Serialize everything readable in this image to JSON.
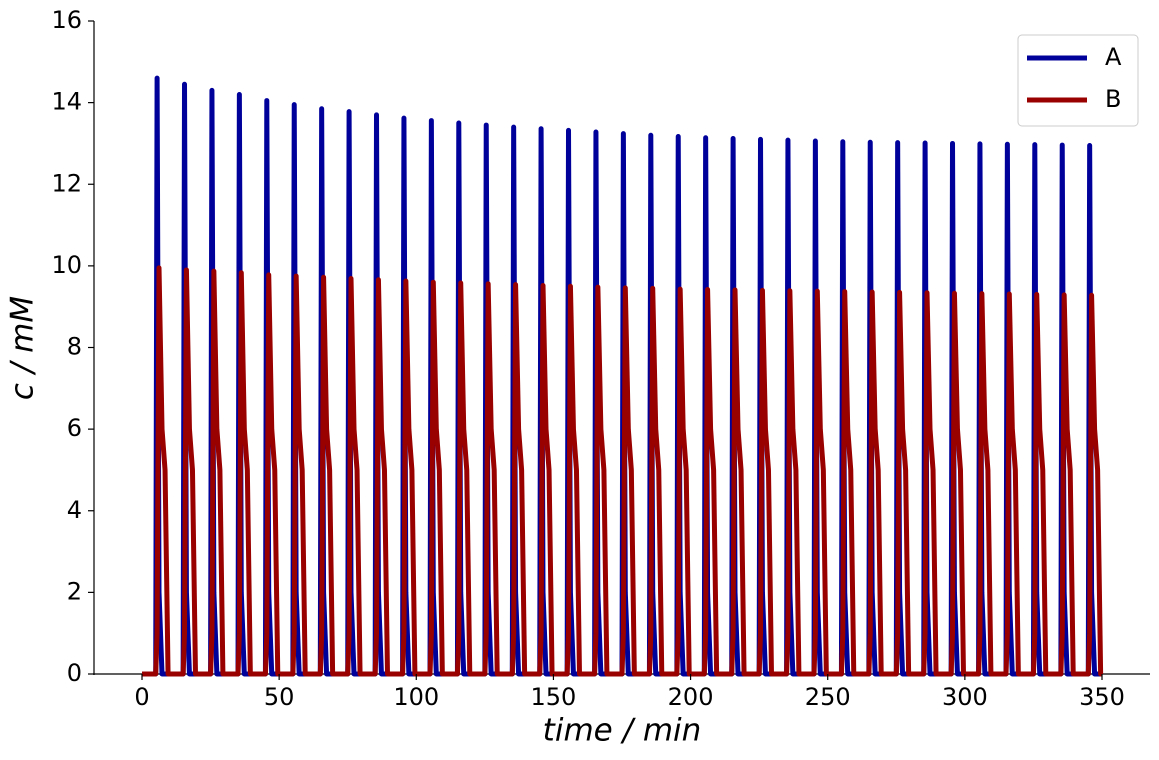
{
  "chart_data": {
    "type": "line",
    "xlabel": "time / min",
    "ylabel": "c / mM",
    "xlim": [
      -17.5,
      367.5
    ],
    "ylim": [
      0,
      16
    ],
    "xticks": [
      0,
      50,
      100,
      150,
      200,
      250,
      300,
      350
    ],
    "yticks": [
      0,
      2,
      4,
      6,
      8,
      10,
      12,
      14,
      16
    ],
    "legend": "upper right",
    "x": [
      0,
      5,
      5.5,
      6.2,
      7.3,
      8.4,
      9.5,
      15,
      15.5,
      16.2,
      17.3,
      18.4,
      19.5,
      25,
      25.5,
      26.2,
      27.3,
      28.4,
      29.5,
      35,
      35.5,
      36.2,
      37.3,
      38.4,
      39.5,
      45,
      45.5,
      46.2,
      47.3,
      48.4,
      49.5,
      55,
      55.5,
      56.2,
      57.3,
      58.4,
      59.5,
      65,
      65.5,
      66.2,
      67.3,
      68.4,
      69.5,
      75,
      75.5,
      76.2,
      77.3,
      78.4,
      79.5,
      85,
      85.5,
      86.2,
      87.3,
      88.4,
      89.5,
      95,
      95.5,
      96.2,
      97.3,
      98.4,
      99.5,
      105,
      105.5,
      106.2,
      107.3,
      108.4,
      109.5,
      115,
      115.5,
      116.2,
      117.3,
      118.4,
      119.5,
      125,
      125.5,
      126.2,
      127.3,
      128.4,
      129.5,
      135,
      135.5,
      136.2,
      137.3,
      138.4,
      139.5,
      145,
      145.5,
      146.2,
      147.3,
      148.4,
      149.5,
      155,
      155.5,
      156.2,
      157.3,
      158.4,
      159.5,
      165,
      165.5,
      166.2,
      167.3,
      168.4,
      169.5,
      175,
      175.5,
      176.2,
      177.3,
      178.4,
      179.5,
      185,
      185.5,
      186.2,
      187.3,
      188.4,
      189.5,
      195,
      195.5,
      196.2,
      197.3,
      198.4,
      199.5,
      205,
      205.5,
      206.2,
      207.3,
      208.4,
      209.5,
      215,
      215.5,
      216.2,
      217.3,
      218.4,
      219.5,
      225,
      225.5,
      226.2,
      227.3,
      228.4,
      229.5,
      235,
      235.5,
      236.2,
      237.3,
      238.4,
      239.5,
      245,
      245.5,
      246.2,
      247.3,
      248.4,
      249.5,
      255,
      255.5,
      256.2,
      257.3,
      258.4,
      259.5,
      265,
      265.5,
      266.2,
      267.3,
      268.4,
      269.5,
      275,
      275.5,
      276.2,
      277.3,
      278.4,
      279.5,
      285,
      285.5,
      286.2,
      287.3,
      288.4,
      289.5,
      295,
      295.5,
      296.2,
      297.3,
      298.4,
      299.5,
      305,
      305.5,
      306.2,
      307.3,
      308.4,
      309.5,
      315,
      315.5,
      316.2,
      317.3,
      318.4,
      319.5,
      325,
      325.5,
      326.2,
      327.3,
      328.4,
      329.5,
      335,
      335.5,
      336.2,
      337.3,
      338.4,
      339.5,
      345,
      345.5,
      346.2,
      347.3,
      348.4,
      349.5,
      350
    ],
    "series": [
      {
        "name": "A",
        "color": "#00009b",
        "values": [
          0,
          0,
          14.6,
          2,
          0,
          0,
          0,
          0,
          14.45,
          2,
          0,
          0,
          0,
          0,
          14.3,
          2,
          0,
          0,
          0,
          0,
          14.2,
          2,
          0,
          0,
          0,
          0,
          14.05,
          2,
          0,
          0,
          0,
          0,
          13.95,
          2,
          0,
          0,
          0,
          0,
          13.85,
          2,
          0,
          0,
          0,
          0,
          13.78,
          2,
          0,
          0,
          0,
          0,
          13.7,
          2,
          0,
          0,
          0,
          0,
          13.62,
          2,
          0,
          0,
          0,
          0,
          13.56,
          2,
          0,
          0,
          0,
          0,
          13.5,
          2,
          0,
          0,
          0,
          0,
          13.45,
          2,
          0,
          0,
          0,
          0,
          13.4,
          2,
          0,
          0,
          0,
          0,
          13.36,
          2,
          0,
          0,
          0,
          0,
          13.32,
          2,
          0,
          0,
          0,
          0,
          13.28,
          2,
          0,
          0,
          0,
          0,
          13.24,
          2,
          0,
          0,
          0,
          0,
          13.2,
          2,
          0,
          0,
          0,
          0,
          13.17,
          2,
          0,
          0,
          0,
          0,
          13.14,
          2,
          0,
          0,
          0,
          0,
          13.12,
          2,
          0,
          0,
          0,
          0,
          13.1,
          2,
          0,
          0,
          0,
          0,
          13.08,
          2,
          0,
          0,
          0,
          0,
          13.06,
          2,
          0,
          0,
          0,
          0,
          13.04,
          2,
          0,
          0,
          0,
          0,
          13.03,
          2,
          0,
          0,
          0,
          0,
          13.02,
          2,
          0,
          0,
          0,
          0,
          13.01,
          2,
          0,
          0,
          0,
          0,
          13.0,
          2,
          0,
          0,
          0,
          0,
          12.99,
          2,
          0,
          0,
          0,
          0,
          12.98,
          2,
          0,
          0,
          0,
          0,
          12.97,
          2,
          0,
          0,
          0,
          0,
          12.96,
          2,
          0,
          0,
          0,
          0,
          12.95,
          2,
          0,
          0,
          0,
          0
        ]
      },
      {
        "name": "B",
        "color": "#990000",
        "values": [
          0,
          0,
          1,
          9.95,
          6,
          5,
          0,
          0,
          1,
          9.9,
          6,
          5,
          0,
          0,
          1,
          9.87,
          6,
          5,
          0,
          0,
          1,
          9.83,
          6,
          5,
          0,
          0,
          1,
          9.78,
          6,
          5,
          0,
          0,
          1,
          9.75,
          6,
          5,
          0,
          0,
          1,
          9.72,
          6,
          5,
          0,
          0,
          1,
          9.69,
          6,
          5,
          0,
          0,
          1,
          9.66,
          6,
          5,
          0,
          0,
          1,
          9.63,
          6,
          5,
          0,
          0,
          1,
          9.6,
          6,
          5,
          0,
          0,
          1,
          9.58,
          6,
          5,
          0,
          0,
          1,
          9.56,
          6,
          5,
          0,
          0,
          1,
          9.54,
          6,
          5,
          0,
          0,
          1,
          9.52,
          6,
          5,
          0,
          0,
          1,
          9.5,
          6,
          5,
          0,
          0,
          1,
          9.48,
          6,
          5,
          0,
          0,
          1,
          9.46,
          6,
          5,
          0,
          0,
          1,
          9.45,
          6,
          5,
          0,
          0,
          1,
          9.43,
          6,
          5,
          0,
          0,
          1,
          9.42,
          6,
          5,
          0,
          0,
          1,
          9.41,
          6,
          5,
          0,
          0,
          1,
          9.4,
          6,
          5,
          0,
          0,
          1,
          9.39,
          6,
          5,
          0,
          0,
          1,
          9.38,
          6,
          5,
          0,
          0,
          1,
          9.37,
          6,
          5,
          0,
          0,
          1,
          9.36,
          6,
          5,
          0,
          0,
          1,
          9.35,
          6,
          5,
          0,
          0,
          1,
          9.34,
          6,
          5,
          0,
          0,
          1,
          9.33,
          6,
          5,
          0,
          0,
          1,
          9.32,
          6,
          5,
          0,
          0,
          1,
          9.31,
          6,
          5,
          0,
          0,
          1,
          9.3,
          6,
          5,
          0,
          0,
          1,
          9.29,
          6,
          5,
          0,
          0,
          1,
          9.28,
          6,
          5,
          0,
          0
        ]
      }
    ]
  }
}
